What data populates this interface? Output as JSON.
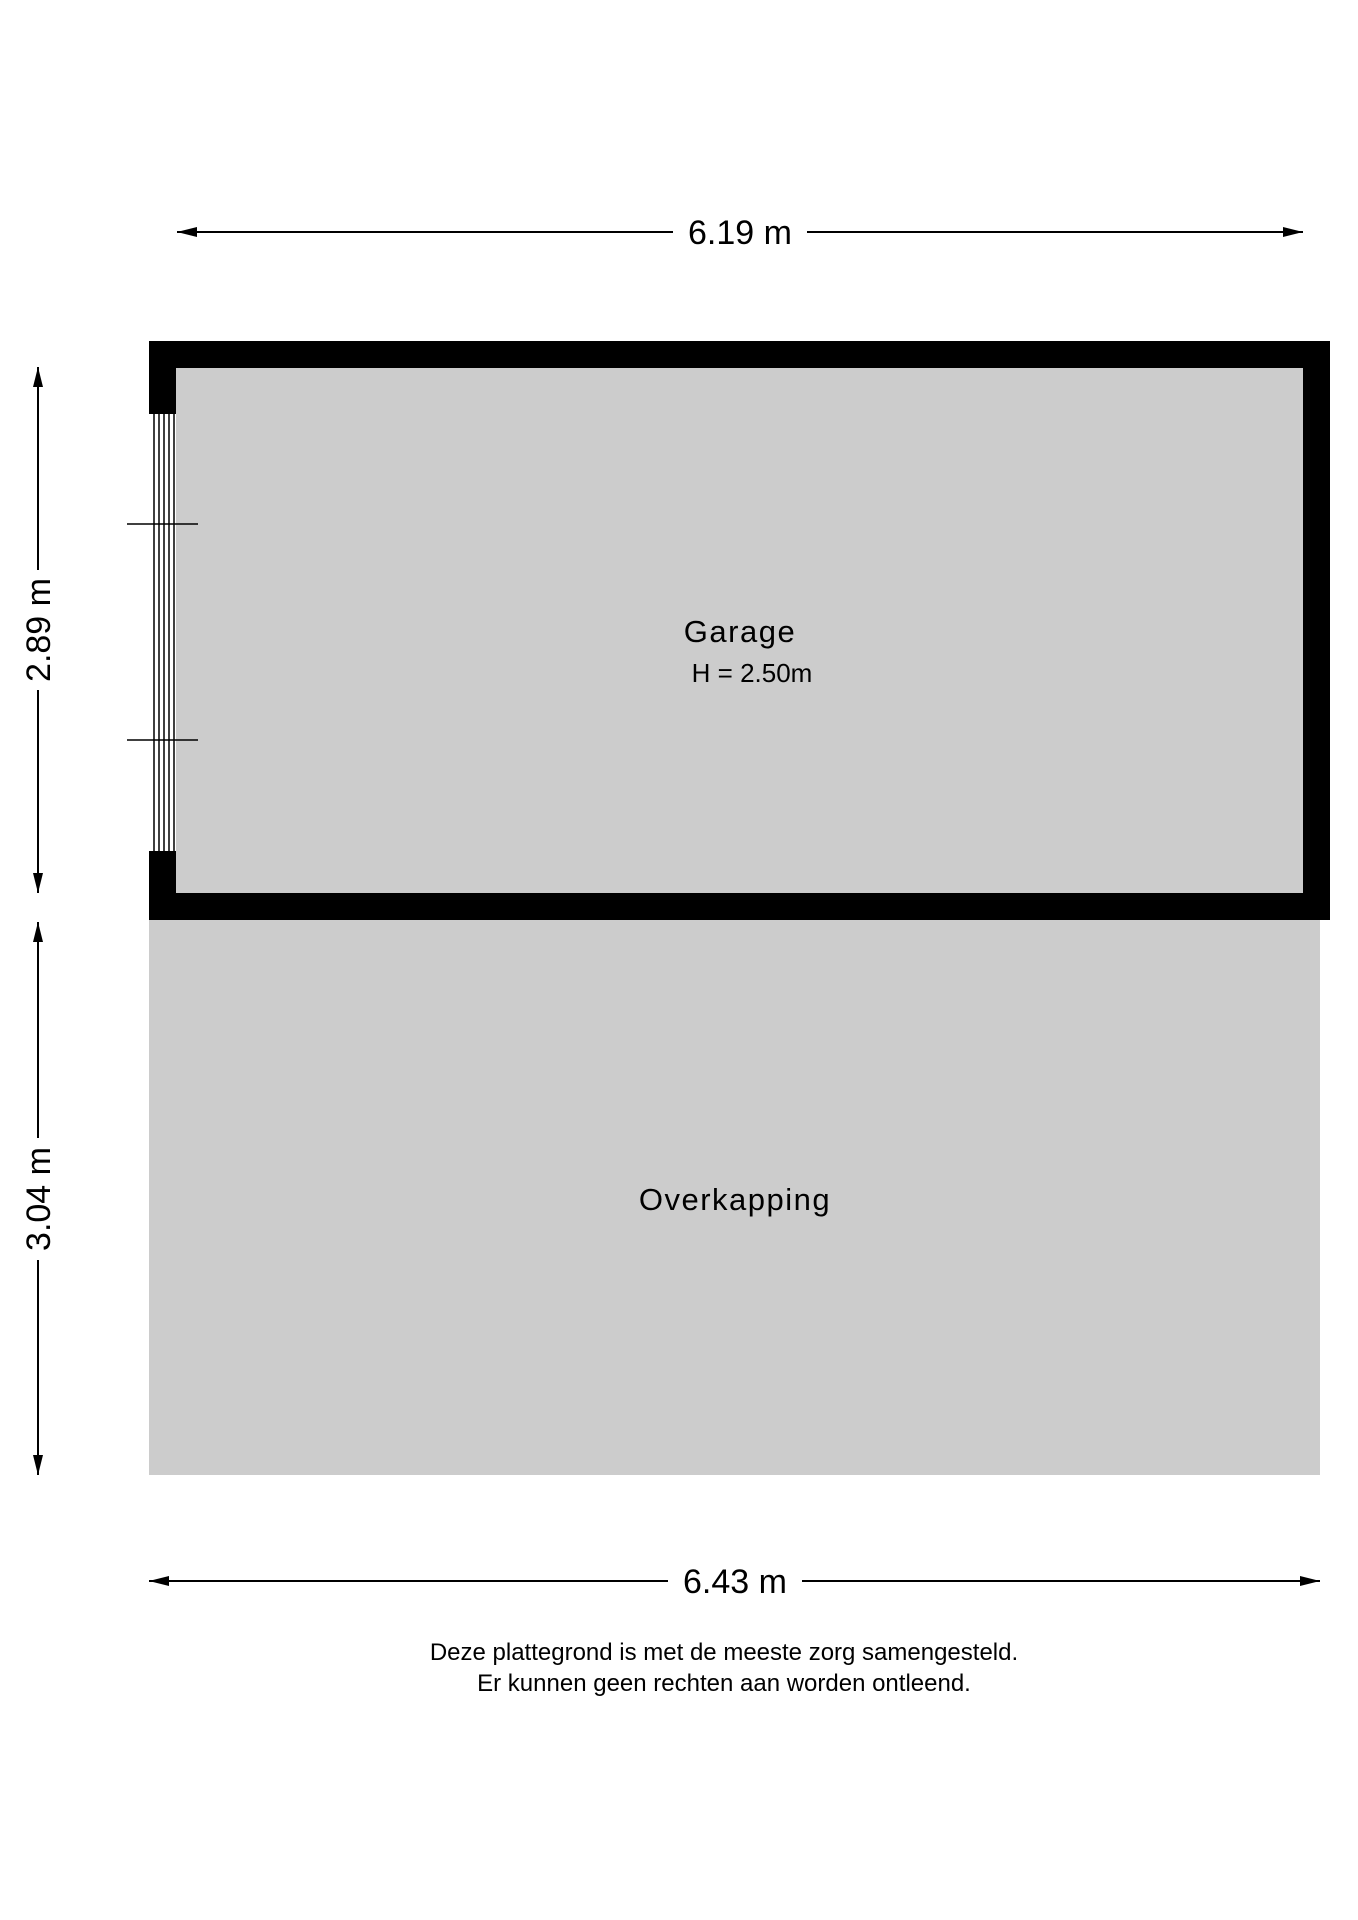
{
  "dimensions": {
    "top_width": "6.19 m",
    "bottom_width": "6.43 m",
    "garage_depth": "2.89 m",
    "overkapping_depth": "3.04 m"
  },
  "rooms": [
    {
      "name": "Garage",
      "height": "H = 2.50m"
    },
    {
      "name": "Overkapping"
    }
  ],
  "footer": {
    "line1": "Deze plattegrond is met de meeste zorg samengesteld.",
    "line2": "Er kunnen geen rechten aan worden ontleend."
  },
  "colors": {
    "floor": "#cccccc",
    "wall": "#000000"
  }
}
